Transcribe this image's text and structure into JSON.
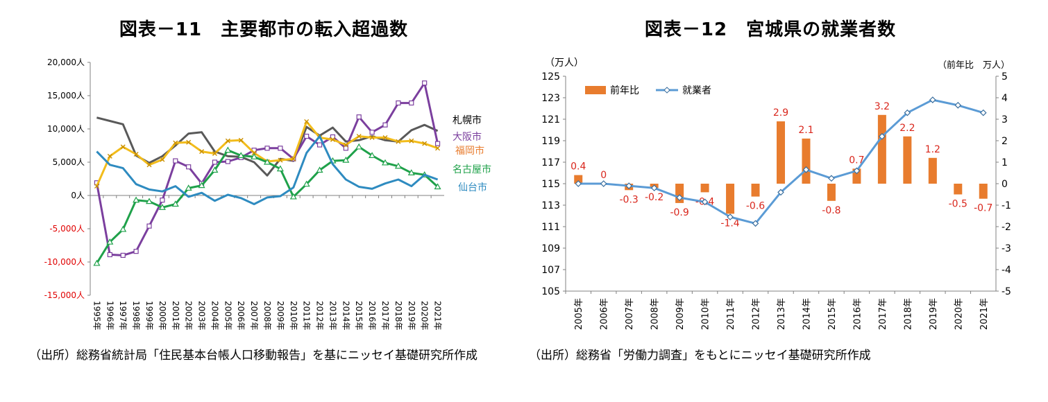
{
  "titles": {
    "left": "図表－11　主要都市の転入超過数",
    "right": "図表－12　宮城県の就業者数"
  },
  "sources": {
    "left": "（出所）総務省統計局「住民基本台帳人口移動報告」を基にニッセイ基礎研究所作成",
    "right": "（出所）総務省「労働力調査」をもとにニッセイ基礎研究所作成"
  },
  "chart_data": [
    {
      "type": "line",
      "title": "図表－11　主要都市の転入超過数",
      "xlabel": "",
      "ylabel": "",
      "ylim": [
        -15000,
        20000
      ],
      "y_ticks": [
        {
          "value": 20000,
          "label": "20,000人"
        },
        {
          "value": 15000,
          "label": "15,000人"
        },
        {
          "value": 10000,
          "label": "10,000人"
        },
        {
          "value": 5000,
          "label": "5,000人"
        },
        {
          "value": 0,
          "label": "0人"
        },
        {
          "value": -5000,
          "label": "-5,000人"
        },
        {
          "value": -10000,
          "label": "-10,000人"
        },
        {
          "value": -15000,
          "label": "-15,000人"
        }
      ],
      "categories": [
        "1995年",
        "1996年",
        "1997年",
        "1998年",
        "1999年",
        "2000年",
        "2001年",
        "2002年",
        "2003年",
        "2004年",
        "2005年",
        "2006年",
        "2007年",
        "2008年",
        "2009年",
        "2010年",
        "2011年",
        "2012年",
        "2013年",
        "2014年",
        "2015年",
        "2016年",
        "2017年",
        "2018年",
        "2019年",
        "2020年",
        "2021年"
      ],
      "series": [
        {
          "name": "札幌市",
          "color": "#595959",
          "marker": "none",
          "values": [
            11700,
            11200,
            10700,
            6000,
            4900,
            5900,
            7500,
            9300,
            9500,
            6600,
            5900,
            5800,
            5000,
            3000,
            5500,
            5200,
            10300,
            9000,
            10200,
            8100,
            8300,
            8900,
            8300,
            8100,
            9800,
            10600,
            9700
          ]
        },
        {
          "name": "大阪市",
          "color": "#7B3F9E",
          "marker": "square",
          "values": [
            1900,
            -8900,
            -9000,
            -8400,
            -4600,
            -700,
            5200,
            4300,
            1800,
            5000,
            5100,
            5700,
            6800,
            7100,
            7100,
            5500,
            8900,
            7600,
            8800,
            7100,
            11800,
            9500,
            10600,
            13900,
            13900,
            16900,
            7800
          ]
        },
        {
          "name": "福岡市",
          "color": "#F2BC1B",
          "marker": "x",
          "values": [
            1400,
            5900,
            7300,
            6200,
            4600,
            5400,
            7900,
            8000,
            6600,
            6300,
            8200,
            8300,
            6400,
            5100,
            5300,
            5500,
            11100,
            8700,
            8400,
            7600,
            8900,
            8700,
            8700,
            8100,
            8200,
            7800,
            7100
          ]
        },
        {
          "name": "名古屋市",
          "color": "#1FA14A",
          "marker": "triangle",
          "values": [
            -10200,
            -7000,
            -5100,
            -700,
            -900,
            -1800,
            -1300,
            1100,
            1500,
            3800,
            6800,
            6000,
            5800,
            5000,
            4000,
            -200,
            1700,
            3800,
            5200,
            5300,
            7300,
            6000,
            4900,
            4400,
            3400,
            3100,
            1300
          ]
        },
        {
          "name": "仙台市",
          "color": "#2E8BC0",
          "marker": "none",
          "values": [
            6600,
            4600,
            4100,
            1700,
            900,
            600,
            1400,
            -200,
            400,
            -800,
            100,
            -400,
            -1300,
            -300,
            -100,
            1200,
            6400,
            8900,
            4700,
            2400,
            1300,
            1000,
            1800,
            2400,
            1400,
            3100,
            2400
          ]
        }
      ],
      "legend_labels": [
        "札幌市",
        "大阪市",
        "福岡市",
        "名古屋市",
        "仙台市"
      ]
    },
    {
      "type": "bar+line",
      "title": "図表－12　宮城県の就業者数",
      "left_axis_label": "（万人）",
      "right_axis_label": "（前年比　万人）",
      "ylim_left": [
        105,
        125
      ],
      "y_ticks_left": [
        125,
        123,
        121,
        119,
        117,
        115,
        113,
        111,
        109,
        107,
        105
      ],
      "ylim_right": [
        -5,
        5
      ],
      "y_ticks_right": [
        5,
        4,
        3,
        2,
        1,
        0,
        -1,
        -2,
        -3,
        -4,
        -5
      ],
      "categories": [
        "2005年",
        "2006年",
        "2007年",
        "2008年",
        "2009年",
        "2010年",
        "2011年",
        "2012年",
        "2013年",
        "2014年",
        "2015年",
        "2016年",
        "2017年",
        "2018年",
        "2019年",
        "2020年",
        "2021年"
      ],
      "series": [
        {
          "name": "前年比",
          "type": "bar",
          "axis": "right",
          "color": "#E87C2E",
          "values": [
            0.4,
            0,
            -0.3,
            -0.2,
            -0.9,
            -0.4,
            -1.4,
            -0.6,
            2.9,
            2.1,
            -0.8,
            0.7,
            3.2,
            2.2,
            1.2,
            -0.5,
            -0.7
          ],
          "labels": [
            "0.4",
            "0",
            "-0.3",
            "-0.2",
            "-0.9",
            "-0.4",
            "-1.4",
            "-0.6",
            "2.9",
            "2.1",
            "-0.8",
            "0.7",
            "3.2",
            "2.2",
            "1.2",
            "-0.5",
            "-0.7"
          ],
          "label_color": "#D9261C"
        },
        {
          "name": "就業者",
          "type": "line",
          "axis": "left",
          "color": "#5B9BD5",
          "marker": "diamond",
          "values": [
            115.0,
            115.0,
            114.8,
            114.6,
            113.7,
            113.3,
            111.9,
            111.3,
            114.2,
            116.3,
            115.5,
            116.2,
            119.4,
            121.6,
            122.8,
            122.3,
            121.6
          ]
        }
      ],
      "legend_labels": [
        "前年比",
        "就業者"
      ]
    }
  ]
}
